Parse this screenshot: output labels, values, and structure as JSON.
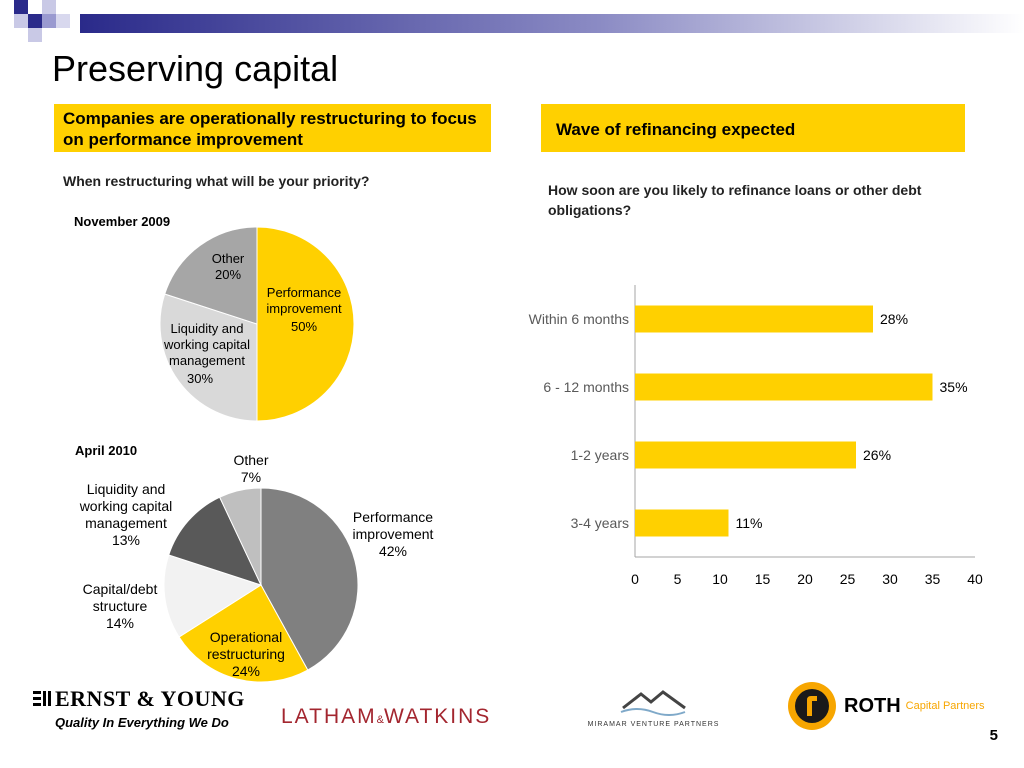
{
  "slide": {
    "title": "Preserving capital",
    "page_number": "5"
  },
  "left_panel": {
    "header": "Companies are operationally restructuring to focus on performance improvement",
    "question": "When restructuring what will be your priority?"
  },
  "right_panel": {
    "header": "Wave of refinancing expected",
    "question": "How soon are you likely to refinance loans or other debt obligations?"
  },
  "chart_data": [
    {
      "type": "pie",
      "title": "November 2009",
      "slices": [
        {
          "label": "Performance improvement",
          "value": 50,
          "value_label": "50%",
          "color": "#ffd000"
        },
        {
          "label": "Liquidity and working capital management",
          "value": 30,
          "value_label": "30%",
          "color": "#d9d9d9"
        },
        {
          "label": "Other",
          "value": 20,
          "value_label": "20%",
          "color": "#a6a6a6"
        }
      ]
    },
    {
      "type": "pie",
      "title": "April 2010",
      "slices": [
        {
          "label": "Performance improvement",
          "value": 42,
          "value_label": "42%",
          "color": "#808080"
        },
        {
          "label": "Operational restructuring",
          "value": 24,
          "value_label": "24%",
          "color": "#ffd000"
        },
        {
          "label": "Capital/debt structure",
          "value": 14,
          "value_label": "14%",
          "color": "#f2f2f2"
        },
        {
          "label": "Liquidity and working capital management",
          "value": 13,
          "value_label": "13%",
          "color": "#595959"
        },
        {
          "label": "Other",
          "value": 7,
          "value_label": "7%",
          "color": "#bfbfbf"
        }
      ]
    },
    {
      "type": "bar",
      "orientation": "horizontal",
      "categories": [
        "Within 6 months",
        "6 - 12 months",
        "1-2 years",
        "3-4 years"
      ],
      "values": [
        28,
        35,
        26,
        11
      ],
      "value_labels": [
        "28%",
        "35%",
        "26%",
        "11%"
      ],
      "xlim": [
        0,
        40
      ],
      "xticks": [
        "0",
        "5",
        "10",
        "15",
        "20",
        "25",
        "30",
        "35",
        "40"
      ],
      "bar_color": "#ffd000",
      "grid": false
    }
  ],
  "logos": {
    "ey_name": "ERNST & YOUNG",
    "ey_tagline": "Quality In Everything We Do",
    "latham_left": "LATHAM",
    "latham_amp": "&",
    "latham_right": "WATKINS",
    "miramar": "MIRAMAR VENTURE PARTNERS",
    "roth_name": "ROTH",
    "roth_sub": "Capital Partners"
  }
}
